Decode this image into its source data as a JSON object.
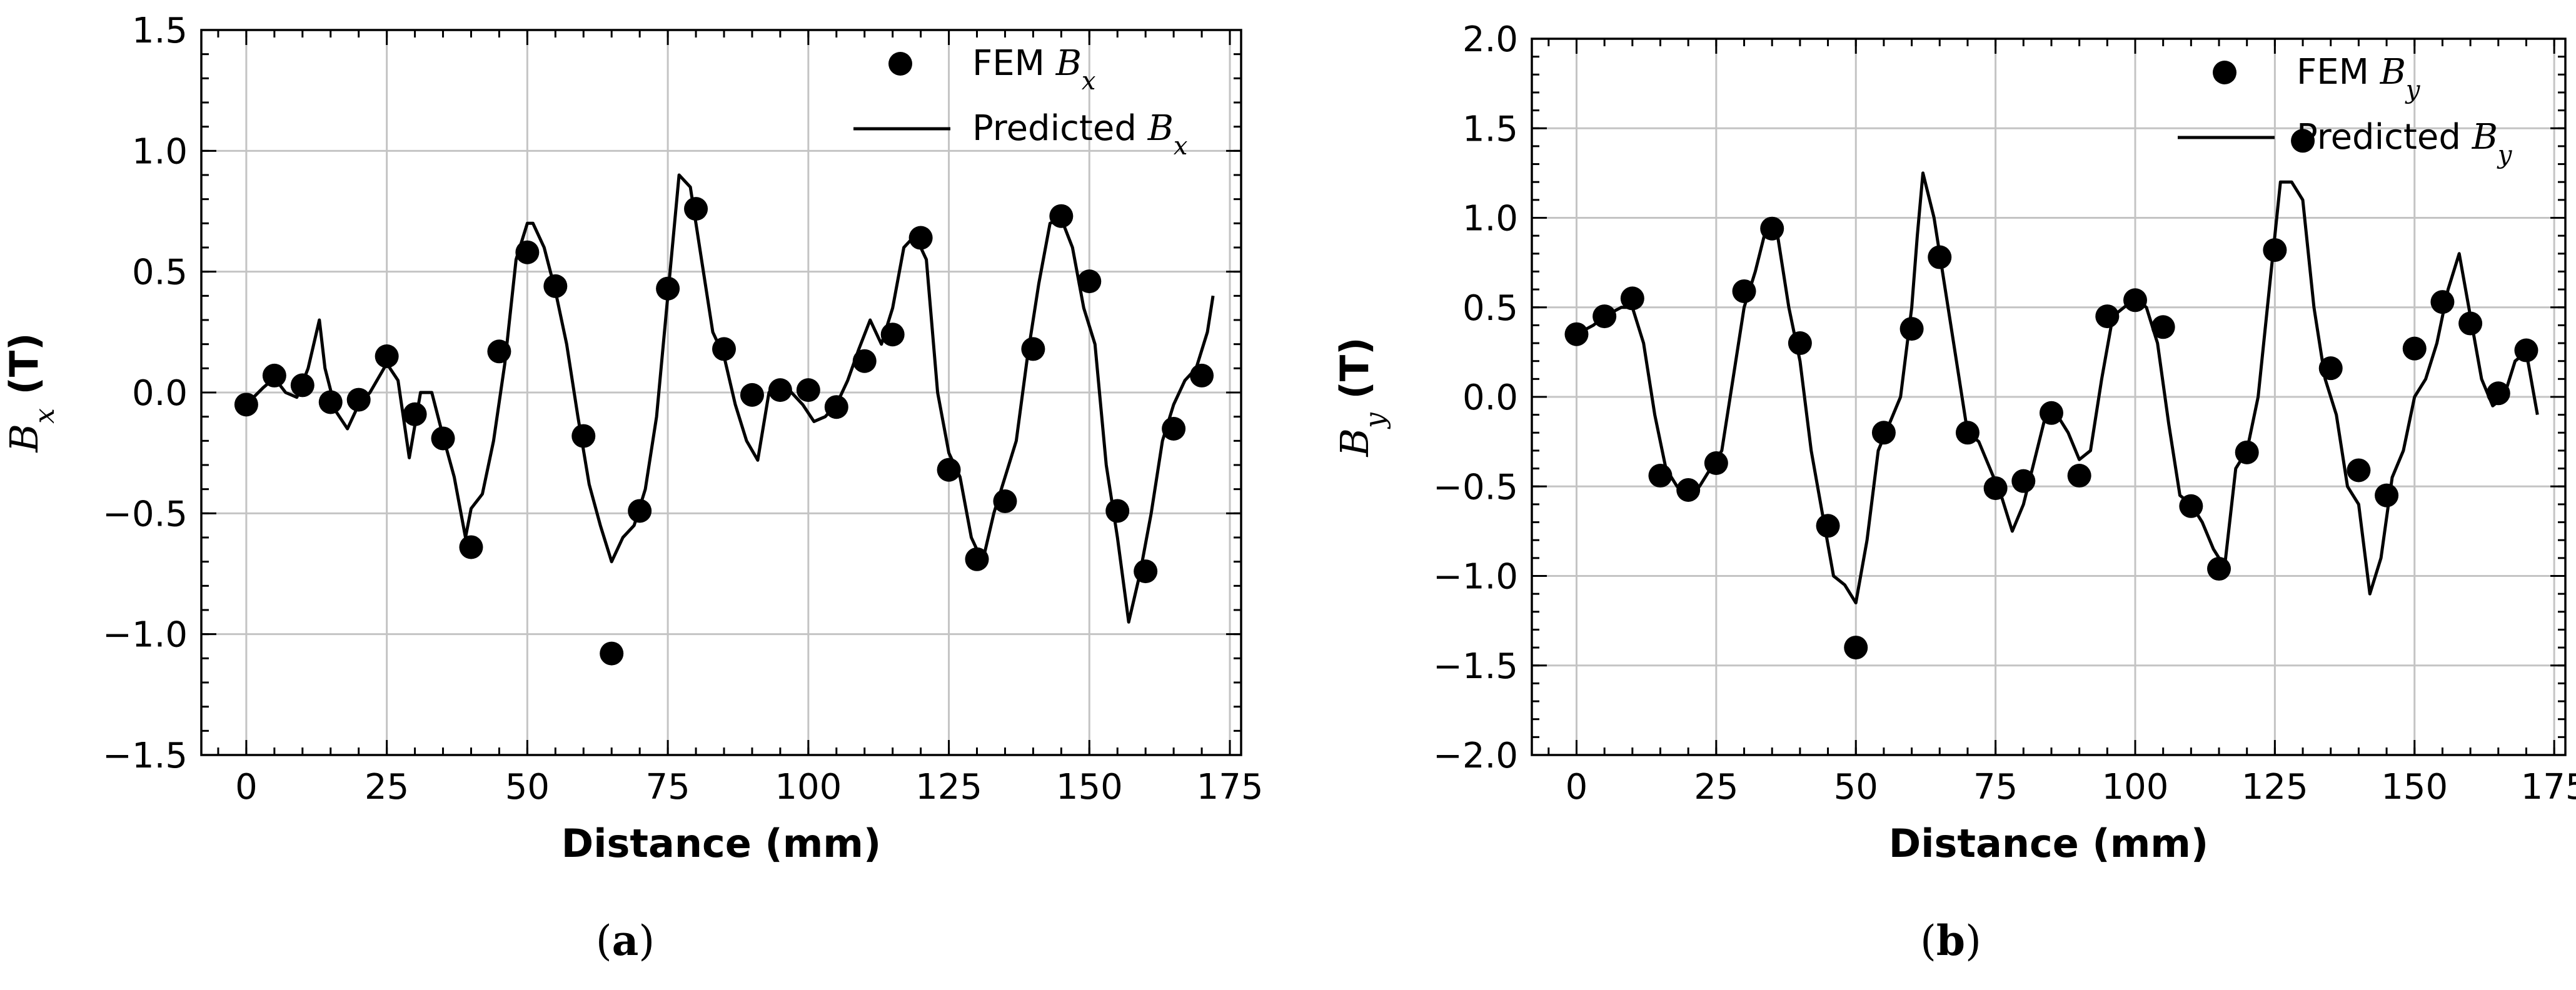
{
  "chart_data": [
    {
      "type": "line",
      "panel_label": "a",
      "title": "",
      "xlabel": "Distance (mm)",
      "ylabel_sym": "B",
      "ylabel_sub": "x",
      "ylabel_unit": " (T)",
      "xlim": [
        -8,
        177
      ],
      "ylim": [
        -1.5,
        1.5
      ],
      "xticks": [
        0,
        25,
        50,
        75,
        100,
        125,
        150,
        175
      ],
      "yticks": [
        -1.5,
        -1.0,
        -0.5,
        0.0,
        0.5,
        1.0,
        1.5
      ],
      "ytick_labels": [
        "−1.5",
        "−1.0",
        "−0.5",
        "0.0",
        "0.5",
        "1.0",
        "1.5"
      ],
      "grid": true,
      "legend_position": "top-right",
      "series": [
        {
          "name": "FEM",
          "legend_prefix": "FEM ",
          "legend_sym": "B",
          "legend_sub": "x",
          "kind": "scatter",
          "x": [
            0,
            5,
            10,
            15,
            20,
            25,
            30,
            35,
            40,
            45,
            50,
            55,
            60,
            65,
            70,
            75,
            80,
            85,
            90,
            95,
            100,
            105,
            110,
            115,
            120,
            125,
            130,
            135,
            140,
            145,
            150,
            155,
            160,
            165,
            170
          ],
          "y": [
            -0.05,
            0.07,
            0.03,
            -0.04,
            -0.03,
            0.15,
            -0.09,
            -0.19,
            -0.64,
            0.17,
            0.58,
            0.44,
            -0.18,
            -1.08,
            -0.49,
            0.43,
            0.76,
            0.18,
            -0.01,
            0.01,
            0.01,
            -0.06,
            0.13,
            0.24,
            0.64,
            -0.32,
            -0.69,
            -0.45,
            0.18,
            0.73,
            0.46,
            -0.49,
            -0.74,
            -0.15,
            0.07
          ]
        },
        {
          "name": "Predicted",
          "legend_prefix": "Predicted ",
          "legend_sym": "B",
          "legend_sub": "x",
          "kind": "line",
          "x": [
            0,
            3,
            5,
            7,
            9,
            11,
            13,
            14,
            16,
            18,
            20,
            22,
            25,
            27,
            29,
            31,
            33,
            35,
            37,
            39,
            40,
            42,
            44,
            46,
            48,
            50,
            51,
            53,
            55,
            57,
            59,
            61,
            63,
            65,
            67,
            69,
            71,
            73,
            75,
            77,
            79,
            81,
            83,
            85,
            87,
            89,
            91,
            93,
            95,
            97,
            99,
            101,
            103,
            105,
            107,
            109,
            111,
            113,
            115,
            117,
            119,
            121,
            123,
            125,
            127,
            129,
            131,
            133,
            135,
            137,
            139,
            141,
            143,
            145,
            147,
            149,
            151,
            153,
            155,
            157,
            159,
            161,
            163,
            165,
            167,
            169,
            171,
            172
          ],
          "y": [
            -0.05,
            0.02,
            0.06,
            0.0,
            -0.02,
            0.1,
            0.3,
            0.1,
            -0.08,
            -0.15,
            -0.05,
            0.0,
            0.12,
            0.05,
            -0.27,
            0.0,
            0.0,
            -0.18,
            -0.35,
            -0.6,
            -0.48,
            -0.42,
            -0.2,
            0.12,
            0.55,
            0.7,
            0.7,
            0.6,
            0.42,
            0.2,
            -0.1,
            -0.38,
            -0.55,
            -0.7,
            -0.6,
            -0.55,
            -0.4,
            -0.1,
            0.4,
            0.9,
            0.85,
            0.55,
            0.25,
            0.15,
            -0.05,
            -0.2,
            -0.28,
            0.0,
            0.05,
            0.0,
            -0.05,
            -0.12,
            -0.1,
            -0.05,
            0.05,
            0.18,
            0.3,
            0.2,
            0.35,
            0.6,
            0.65,
            0.55,
            0.0,
            -0.25,
            -0.35,
            -0.6,
            -0.7,
            -0.5,
            -0.35,
            -0.2,
            0.15,
            0.45,
            0.7,
            0.72,
            0.6,
            0.35,
            0.2,
            -0.3,
            -0.6,
            -0.95,
            -0.75,
            -0.5,
            -0.2,
            -0.05,
            0.05,
            0.1,
            0.25,
            0.4
          ]
        }
      ]
    },
    {
      "type": "line",
      "panel_label": "b",
      "title": "",
      "xlabel": "Distance (mm)",
      "ylabel_sym": "B",
      "ylabel_sub": "y",
      "ylabel_unit": " (T)",
      "xlim": [
        -8,
        177
      ],
      "ylim": [
        -2.0,
        2.0
      ],
      "xticks": [
        0,
        25,
        50,
        75,
        100,
        125,
        150,
        175
      ],
      "yticks": [
        -2.0,
        -1.5,
        -1.0,
        -0.5,
        0.0,
        0.5,
        1.0,
        1.5,
        2.0
      ],
      "ytick_labels": [
        "−2.0",
        "−1.5",
        "−1.0",
        "−0.5",
        "0.0",
        "0.5",
        "1.0",
        "1.5",
        "2.0"
      ],
      "grid": true,
      "legend_position": "top-right",
      "series": [
        {
          "name": "FEM",
          "legend_prefix": "FEM ",
          "legend_sym": "B",
          "legend_sub": "y",
          "kind": "scatter",
          "x": [
            0,
            5,
            10,
            15,
            20,
            25,
            30,
            35,
            40,
            45,
            50,
            55,
            60,
            65,
            70,
            75,
            80,
            85,
            90,
            95,
            100,
            105,
            110,
            115,
            120,
            125,
            130,
            135,
            140,
            145,
            150,
            155,
            160,
            165,
            170
          ],
          "y": [
            0.35,
            0.45,
            0.55,
            -0.44,
            -0.52,
            -0.37,
            0.59,
            0.94,
            0.3,
            -0.72,
            -1.4,
            -0.2,
            0.38,
            0.78,
            -0.2,
            -0.51,
            -0.47,
            -0.09,
            -0.44,
            0.45,
            0.54,
            0.39,
            -0.61,
            -0.96,
            -0.31,
            0.82,
            1.43,
            0.16,
            -0.41,
            -0.55,
            0.27,
            0.53,
            0.41,
            0.02,
            0.26
          ]
        },
        {
          "name": "Predicted",
          "legend_prefix": "Predicted ",
          "legend_sym": "B",
          "legend_sub": "y",
          "kind": "line",
          "x": [
            0,
            3,
            5,
            8,
            10,
            12,
            14,
            16,
            18,
            20,
            22,
            24,
            26,
            28,
            30,
            32,
            34,
            36,
            38,
            40,
            42,
            44,
            46,
            48,
            50,
            52,
            54,
            56,
            58,
            60,
            61,
            62,
            64,
            66,
            68,
            70,
            72,
            74,
            76,
            78,
            80,
            82,
            84,
            86,
            88,
            90,
            92,
            94,
            96,
            98,
            100,
            102,
            104,
            106,
            108,
            110,
            112,
            114,
            116,
            118,
            120,
            122,
            124,
            126,
            128,
            130,
            132,
            134,
            136,
            138,
            140,
            142,
            144,
            146,
            148,
            150,
            152,
            154,
            156,
            158,
            160,
            162,
            164,
            166,
            168,
            170,
            172
          ],
          "y": [
            0.35,
            0.4,
            0.45,
            0.5,
            0.5,
            0.3,
            -0.1,
            -0.4,
            -0.5,
            -0.55,
            -0.5,
            -0.4,
            -0.3,
            0.1,
            0.5,
            0.7,
            0.95,
            0.9,
            0.5,
            0.2,
            -0.3,
            -0.65,
            -1.0,
            -1.05,
            -1.15,
            -0.8,
            -0.3,
            -0.15,
            0.0,
            0.5,
            0.9,
            1.25,
            1.0,
            0.6,
            0.2,
            -0.2,
            -0.25,
            -0.4,
            -0.55,
            -0.75,
            -0.6,
            -0.35,
            -0.1,
            -0.1,
            -0.2,
            -0.35,
            -0.3,
            0.1,
            0.45,
            0.5,
            0.55,
            0.5,
            0.3,
            -0.15,
            -0.55,
            -0.6,
            -0.7,
            -0.85,
            -0.95,
            -0.4,
            -0.3,
            0.0,
            0.6,
            1.2,
            1.2,
            1.1,
            0.5,
            0.1,
            -0.1,
            -0.5,
            -0.6,
            -1.1,
            -0.9,
            -0.45,
            -0.3,
            0.0,
            0.1,
            0.3,
            0.6,
            0.8,
            0.45,
            0.1,
            -0.05,
            0.0,
            0.2,
            0.25,
            -0.1
          ]
        }
      ]
    }
  ]
}
